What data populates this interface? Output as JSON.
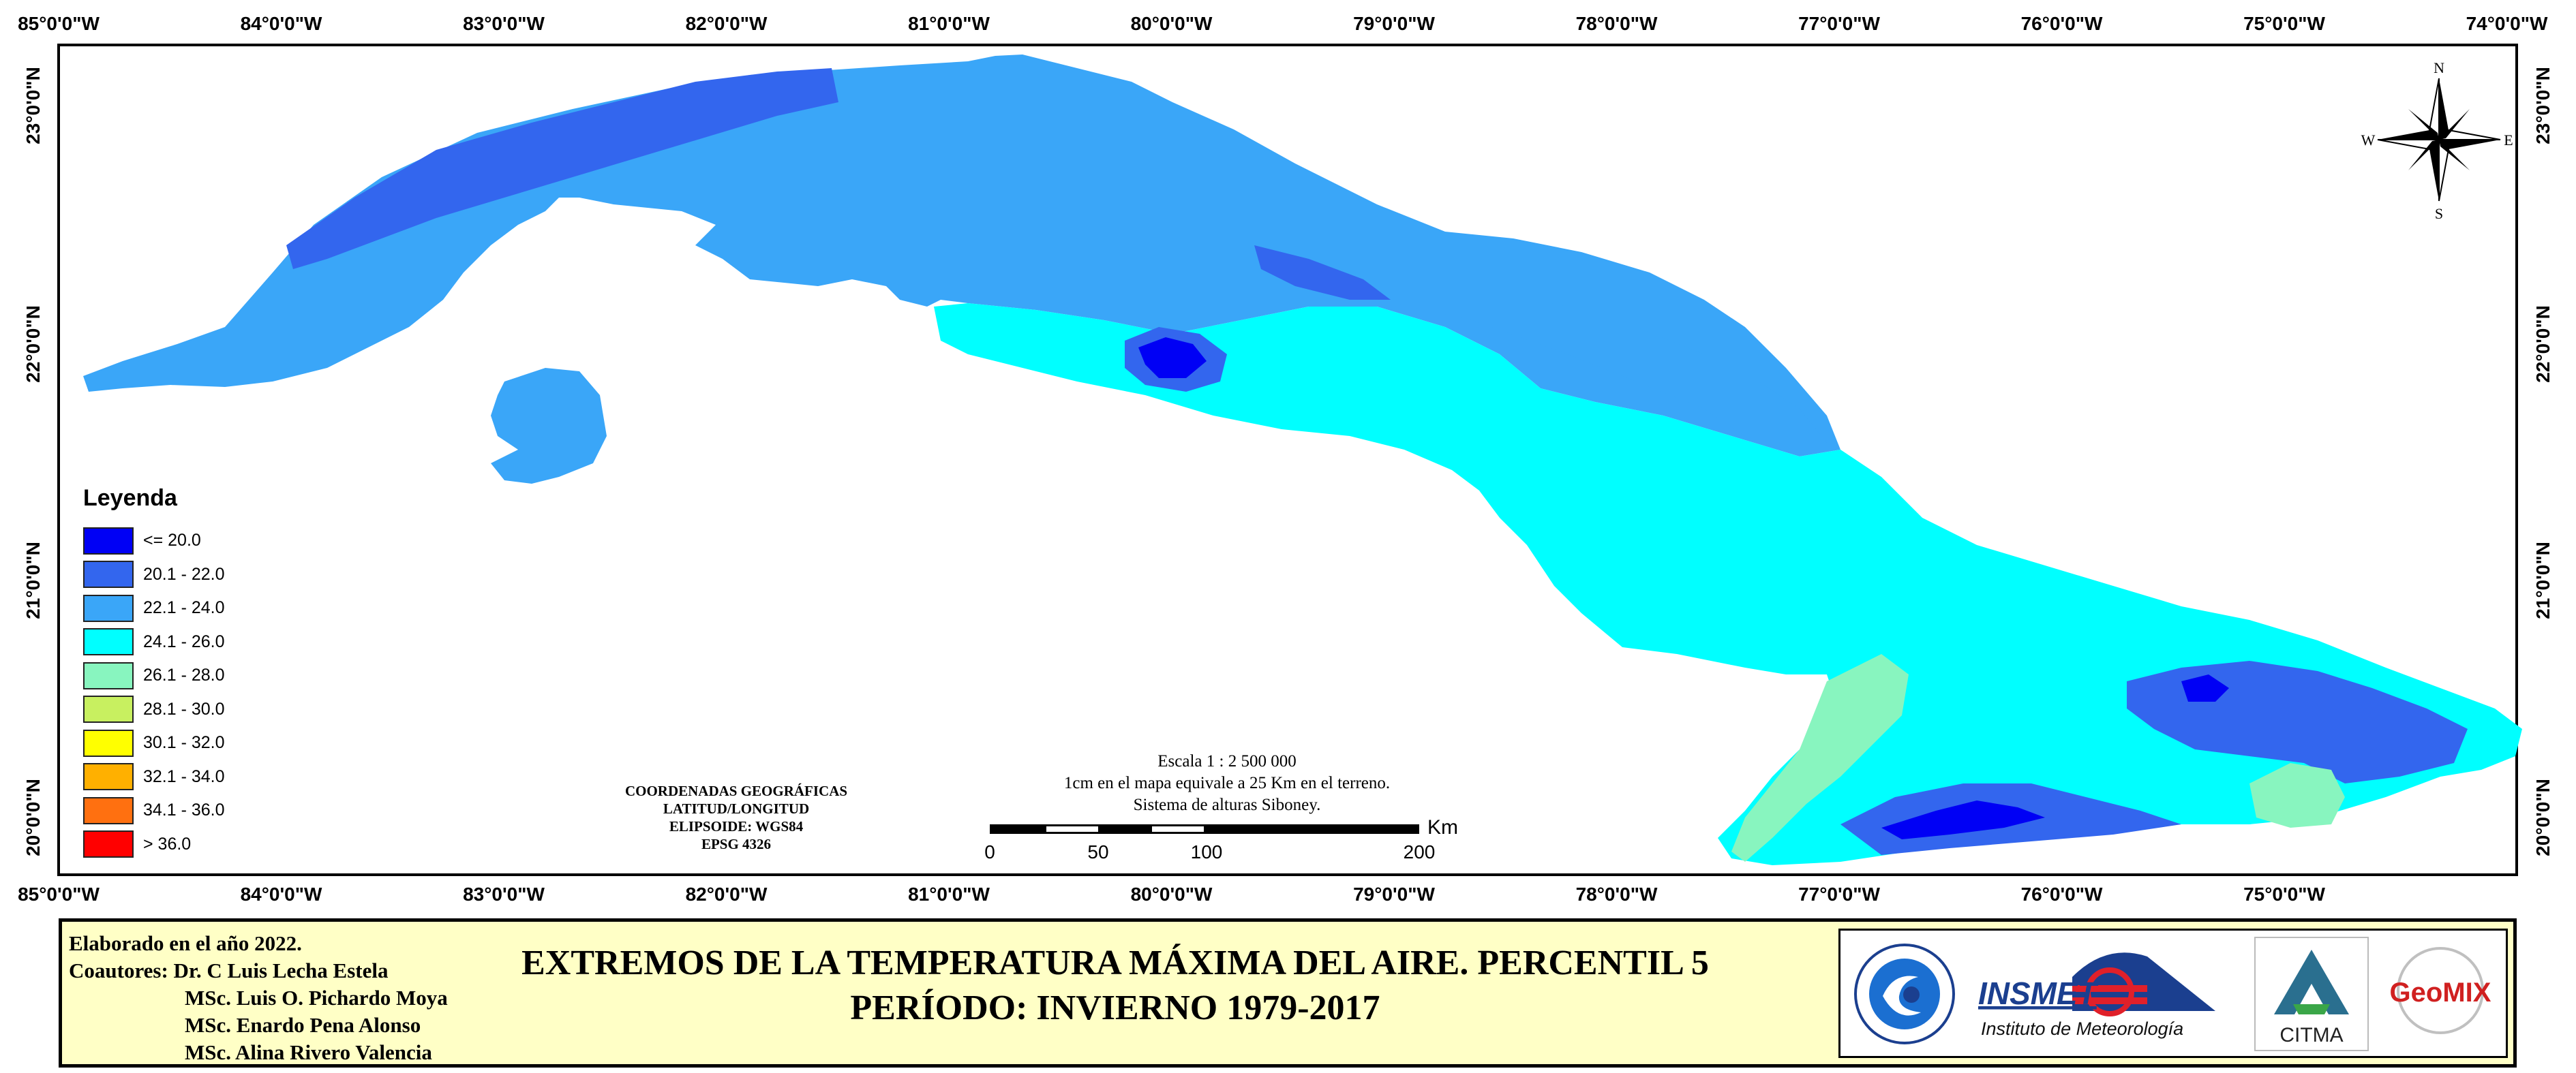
{
  "map": {
    "lon_labels": [
      "85°0'0\"W",
      "84°0'0\"W",
      "83°0'0\"W",
      "82°0'0\"W",
      "81°0'0\"W",
      "80°0'0\"W",
      "79°0'0\"W",
      "78°0'0\"W",
      "77°0'0\"W",
      "76°0'0\"W",
      "75°0'0\"W",
      "74°0'0\"W"
    ],
    "lon_labels_bottom": [
      "85°0'0\"W",
      "84°0'0\"W",
      "83°0'0\"W",
      "82°0'0\"W",
      "81°0'0\"W",
      "80°0'0\"W",
      "79°0'0\"W",
      "78°0'0\"W",
      "77°0'0\"W",
      "76°0'0\"W",
      "75°0'0\"W"
    ],
    "lat_labels": [
      "23°0'0\"N",
      "22°0'0\"N",
      "21°0'0\"N",
      "20°0'0\"N"
    ],
    "frame_color": "#000000",
    "background": "#ffffff"
  },
  "compass": {
    "n": "N",
    "s": "S",
    "e": "E",
    "w": "W"
  },
  "legend": {
    "title": "Leyenda",
    "items": [
      {
        "label": "<= 20.0",
        "color": "#0000f5"
      },
      {
        "label": "20.1 - 22.0",
        "color": "#3366ee"
      },
      {
        "label": "22.1 - 24.0",
        "color": "#3aa6f8"
      },
      {
        "label": "24.1 - 26.0",
        "color": "#00ffff"
      },
      {
        "label": "26.1 - 28.0",
        "color": "#88f5bf"
      },
      {
        "label": "28.1 - 30.0",
        "color": "#c8f060"
      },
      {
        "label": "30.1 - 32.0",
        "color": "#ffff00"
      },
      {
        "label": "32.1 - 34.0",
        "color": "#ffb000"
      },
      {
        "label": "34.1 - 36.0",
        "color": "#ff7010"
      },
      {
        "label": "> 36.0",
        "color": "#ff0000"
      }
    ]
  },
  "geo": {
    "line1": "COORDENADAS GEOGRÁFICAS",
    "line2": "LATITUD/LONGITUD",
    "line3": "ELIPSOIDE: WGS84",
    "line4": "EPSG 4326"
  },
  "scale": {
    "line1": "Escala 1 : 2 500 000",
    "line2": "1cm en el mapa equivale a 25 Km en el terreno.",
    "line3": "Sistema de alturas Siboney.",
    "unit": "Km",
    "ticks": [
      "0",
      "50",
      "100",
      "200"
    ]
  },
  "footer": {
    "elaborado": "Elaborado en el año 2022.",
    "coautores_label": "Coautores:",
    "author1": "Dr. C Luis Lecha Estela",
    "author2": "MSc. Luis O. Pichardo Moya",
    "author3": "MSc. Enardo Pena Alonso",
    "author4": "MSc. Alina Rivero Valencia",
    "title1": "EXTREMOS DE LA TEMPERATURA MÁXIMA DEL AIRE. PERCENTIL 5",
    "title2": "PERÍODO: INVIERNO 1979-2017",
    "logo_insmet": "INSMET",
    "logo_insmet_sub": "Instituto de Meteorología",
    "logo_citma": "CITMA",
    "logo_geomix": "GeoMIX"
  }
}
